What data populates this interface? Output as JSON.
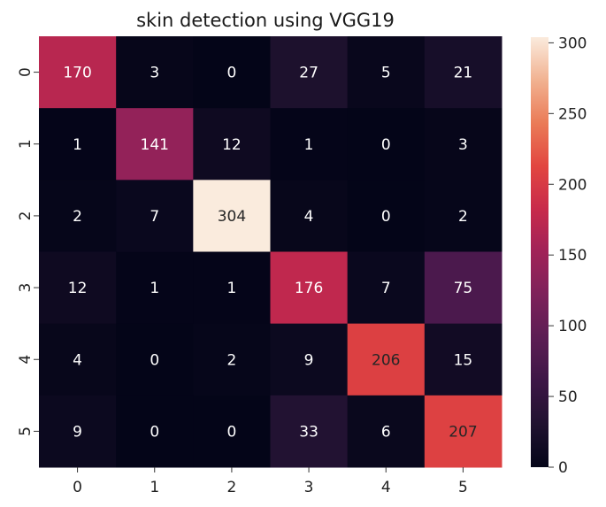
{
  "chart_data": {
    "type": "heatmap",
    "title": "skin detection  using VGG19",
    "xlabel": "",
    "ylabel": "",
    "x_categories": [
      "0",
      "1",
      "2",
      "3",
      "4",
      "5"
    ],
    "y_categories": [
      "0",
      "1",
      "2",
      "3",
      "4",
      "5"
    ],
    "values": [
      [
        170,
        3,
        0,
        27,
        5,
        21
      ],
      [
        1,
        141,
        12,
        1,
        0,
        3
      ],
      [
        2,
        7,
        304,
        4,
        0,
        2
      ],
      [
        12,
        1,
        1,
        176,
        7,
        75
      ],
      [
        4,
        0,
        2,
        9,
        206,
        15
      ],
      [
        9,
        0,
        0,
        33,
        6,
        207
      ]
    ],
    "colorbar": {
      "min": 0,
      "max": 304,
      "ticks": [
        0,
        50,
        100,
        150,
        200,
        250,
        300
      ],
      "colormap": "rocket"
    }
  }
}
